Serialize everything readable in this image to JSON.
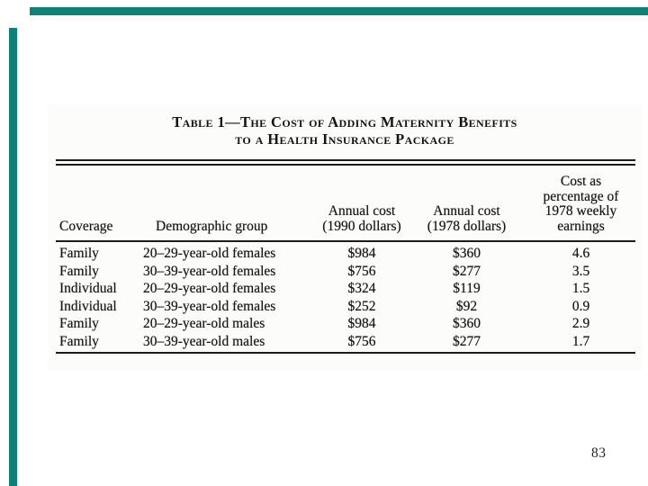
{
  "slide": {
    "page_number": "83",
    "accent_color": "#0f8177",
    "background_color": "#ffffff"
  },
  "table": {
    "title_line1": "Table 1—The Cost of Adding Maternity Benefits",
    "title_line2": "to a Health Insurance Package",
    "headers": {
      "coverage": "Coverage",
      "demographic": "Demographic group",
      "cost_1990": "Annual cost\n(1990 dollars)",
      "cost_1978": "Annual cost\n(1978 dollars)",
      "pct_earnings": "Cost as\npercentage of\n1978 weekly\nearnings"
    },
    "rows": [
      {
        "coverage": "Family",
        "group": "20–29-year-old females",
        "cost_1990": "$984",
        "cost_1978": "$360",
        "pct": "4.6"
      },
      {
        "coverage": "Family",
        "group": "30–39-year-old females",
        "cost_1990": "$756",
        "cost_1978": "$277",
        "pct": "3.5"
      },
      {
        "coverage": "Individual",
        "group": "20–29-year-old females",
        "cost_1990": "$324",
        "cost_1978": "$119",
        "pct": "1.5"
      },
      {
        "coverage": "Individual",
        "group": "30–39-year-old females",
        "cost_1990": "$252",
        "cost_1978": "$92",
        "pct": "0.9"
      },
      {
        "coverage": "Family",
        "group": "20–29-year-old males",
        "cost_1990": "$984",
        "cost_1978": "$360",
        "pct": "2.9"
      },
      {
        "coverage": "Family",
        "group": "30–39-year-old males",
        "cost_1990": "$756",
        "cost_1978": "$277",
        "pct": "1.7"
      }
    ]
  }
}
